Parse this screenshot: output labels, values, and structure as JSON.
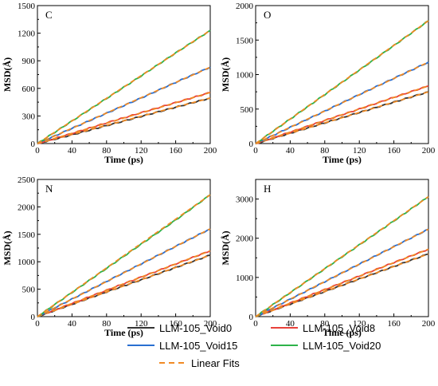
{
  "chart_data": [
    {
      "type": "line",
      "panel_label": "C",
      "xlabel": "Time (ps)",
      "ylabel": "MSD(Å)",
      "xlim": [
        0,
        200
      ],
      "ylim": [
        0,
        1500
      ],
      "xticks": [
        0,
        40,
        80,
        120,
        160,
        200
      ],
      "yticks": [
        0,
        300,
        600,
        900,
        1200,
        1500
      ],
      "series": [
        {
          "name": "LLM-105_Void0",
          "color": "#333333",
          "x": [
            0,
            40,
            80,
            120,
            160,
            200
          ],
          "y": [
            0,
            95,
            195,
            295,
            395,
            495
          ]
        },
        {
          "name": "LLM-105_Void8",
          "color": "#e8413a",
          "x": [
            0,
            40,
            80,
            120,
            160,
            200
          ],
          "y": [
            0,
            110,
            225,
            335,
            445,
            555
          ]
        },
        {
          "name": "LLM-105_Void15",
          "color": "#2a6fd1",
          "x": [
            0,
            40,
            80,
            120,
            160,
            200
          ],
          "y": [
            0,
            165,
            330,
            495,
            665,
            830
          ]
        },
        {
          "name": "LLM-105_Void20",
          "color": "#2db34a",
          "x": [
            0,
            40,
            80,
            120,
            160,
            200
          ],
          "y": [
            0,
            245,
            490,
            735,
            985,
            1230
          ]
        }
      ]
    },
    {
      "type": "line",
      "panel_label": "O",
      "xlabel": "Time (ps)",
      "ylabel": "MSD(Å)",
      "xlim": [
        0,
        200
      ],
      "ylim": [
        0,
        2000
      ],
      "xticks": [
        0,
        40,
        80,
        120,
        160,
        200
      ],
      "yticks": [
        0,
        500,
        1000,
        1500,
        2000
      ],
      "series": [
        {
          "name": "LLM-105_Void0",
          "color": "#333333",
          "x": [
            0,
            40,
            80,
            120,
            160,
            200
          ],
          "y": [
            0,
            150,
            300,
            450,
            600,
            750
          ]
        },
        {
          "name": "LLM-105_Void8",
          "color": "#e8413a",
          "x": [
            0,
            40,
            80,
            120,
            160,
            200
          ],
          "y": [
            0,
            165,
            335,
            500,
            670,
            835
          ]
        },
        {
          "name": "LLM-105_Void15",
          "color": "#2a6fd1",
          "x": [
            0,
            40,
            80,
            120,
            160,
            200
          ],
          "y": [
            0,
            235,
            470,
            710,
            945,
            1180
          ]
        },
        {
          "name": "LLM-105_Void20",
          "color": "#2db34a",
          "x": [
            0,
            40,
            80,
            120,
            160,
            200
          ],
          "y": [
            0,
            355,
            710,
            1065,
            1420,
            1780
          ]
        }
      ]
    },
    {
      "type": "line",
      "panel_label": "N",
      "xlabel": "Time (ps)",
      "ylabel": "MSD(Å)",
      "xlim": [
        0,
        200
      ],
      "ylim": [
        0,
        2500
      ],
      "xticks": [
        0,
        40,
        80,
        120,
        160,
        200
      ],
      "yticks": [
        0,
        500,
        1000,
        1500,
        2000,
        2500
      ],
      "series": [
        {
          "name": "LLM-105_Void0",
          "color": "#333333",
          "x": [
            0,
            40,
            80,
            120,
            160,
            200
          ],
          "y": [
            0,
            225,
            450,
            670,
            895,
            1120
          ]
        },
        {
          "name": "LLM-105_Void8",
          "color": "#e8413a",
          "x": [
            0,
            40,
            80,
            120,
            160,
            200
          ],
          "y": [
            0,
            240,
            480,
            720,
            960,
            1200
          ]
        },
        {
          "name": "LLM-105_Void15",
          "color": "#2a6fd1",
          "x": [
            0,
            40,
            80,
            120,
            160,
            200
          ],
          "y": [
            0,
            320,
            640,
            960,
            1280,
            1600
          ]
        },
        {
          "name": "LLM-105_Void20",
          "color": "#2db34a",
          "x": [
            0,
            40,
            80,
            120,
            160,
            200
          ],
          "y": [
            0,
            440,
            880,
            1320,
            1760,
            2220
          ]
        }
      ]
    },
    {
      "type": "line",
      "panel_label": "H",
      "xlabel": "Time (ps)",
      "ylabel": "MSD(Å)",
      "xlim": [
        0,
        200
      ],
      "ylim": [
        0,
        3500
      ],
      "xticks": [
        0,
        40,
        80,
        120,
        160,
        200
      ],
      "yticks": [
        0,
        1000,
        2000,
        3000
      ],
      "series": [
        {
          "name": "LLM-105_Void0",
          "color": "#333333",
          "x": [
            0,
            40,
            80,
            120,
            160,
            200
          ],
          "y": [
            0,
            320,
            640,
            960,
            1280,
            1600
          ]
        },
        {
          "name": "LLM-105_Void8",
          "color": "#e8413a",
          "x": [
            0,
            40,
            80,
            120,
            160,
            200
          ],
          "y": [
            0,
            345,
            690,
            1035,
            1380,
            1720
          ]
        },
        {
          "name": "LLM-105_Void15",
          "color": "#2a6fd1",
          "x": [
            0,
            40,
            80,
            120,
            160,
            200
          ],
          "y": [
            0,
            445,
            890,
            1340,
            1785,
            2230
          ]
        },
        {
          "name": "LLM-105_Void20",
          "color": "#2db34a",
          "x": [
            0,
            40,
            80,
            120,
            160,
            200
          ],
          "y": [
            0,
            610,
            1220,
            1830,
            2440,
            3060
          ]
        }
      ]
    }
  ],
  "fit_color": "#f08a24",
  "legend": {
    "placement": "bottom-center",
    "items": [
      {
        "label": "LLM-105_Void0",
        "color": "#333333",
        "dashed": false
      },
      {
        "label": "LLM-105_Void8",
        "color": "#e8413a",
        "dashed": false
      },
      {
        "label": "LLM-105_Void15",
        "color": "#2a6fd1",
        "dashed": false
      },
      {
        "label": "LLM-105_Void20",
        "color": "#2db34a",
        "dashed": false
      },
      {
        "label": "Linear  Fits",
        "color": "#f08a24",
        "dashed": true
      }
    ]
  }
}
